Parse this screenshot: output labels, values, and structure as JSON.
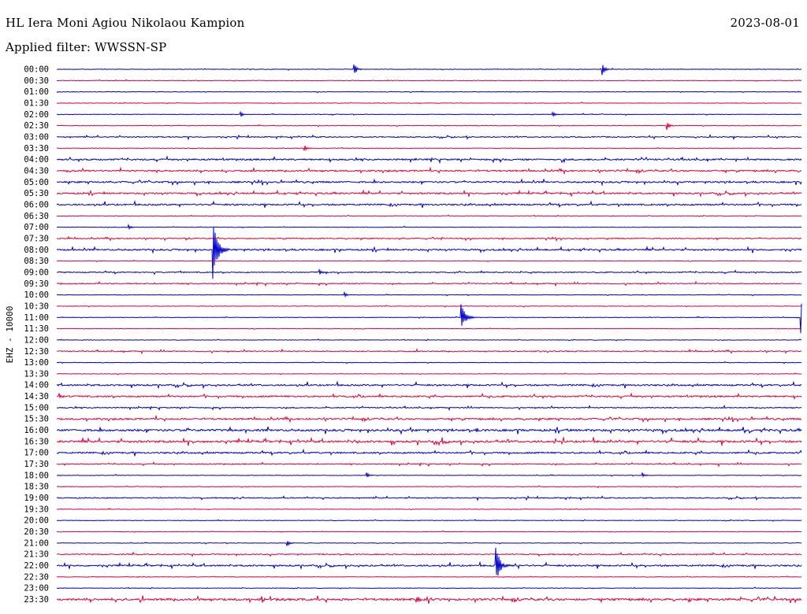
{
  "header": {
    "station": "HL Iera Moni Agiou Nikolaou Kampion",
    "date": "2023-08-01",
    "filter": "Applied filter: WWSSN-SP"
  },
  "chart_data": {
    "type": "line",
    "title": "HL Iera Moni Agiou Nikolaou Kampion",
    "ylabel": "EHZ - 10000",
    "rows": [
      "00:00",
      "00:30",
      "01:00",
      "01:30",
      "02:00",
      "02:30",
      "03:00",
      "03:30",
      "04:00",
      "04:30",
      "05:00",
      "05:30",
      "06:00",
      "06:30",
      "07:00",
      "07:30",
      "08:00",
      "08:30",
      "09:00",
      "09:30",
      "10:00",
      "10:30",
      "11:00",
      "11:30",
      "12:00",
      "12:30",
      "13:00",
      "13:30",
      "14:00",
      "14:30",
      "15:00",
      "15:30",
      "16:00",
      "16:30",
      "17:00",
      "17:30",
      "18:00",
      "18:30",
      "19:00",
      "19:30",
      "20:00",
      "20:30",
      "21:00",
      "21:30",
      "22:00",
      "22:30",
      "23:00",
      "23:30"
    ],
    "colors": [
      "#0000cc",
      "#e0003c"
    ],
    "trace_minutes": 30,
    "noise_level": [
      1,
      1,
      0,
      1,
      1,
      1,
      2,
      1,
      3,
      3,
      3,
      3,
      3,
      1,
      1,
      2,
      3,
      1,
      2,
      2,
      1,
      1,
      1,
      1,
      1,
      2,
      1,
      1,
      3,
      3,
      2,
      3,
      4,
      4,
      3,
      2,
      1,
      1,
      2,
      1,
      1,
      1,
      1,
      2,
      3,
      1,
      1,
      4
    ],
    "events": [
      {
        "row": 0,
        "minute": 12.0,
        "amp": 7
      },
      {
        "row": 0,
        "minute": 22.0,
        "amp": 6
      },
      {
        "row": 4,
        "minute": 7.4,
        "amp": 4
      },
      {
        "row": 4,
        "minute": 20.0,
        "amp": 3
      },
      {
        "row": 5,
        "minute": 24.6,
        "amp": 4
      },
      {
        "row": 7,
        "minute": 10.0,
        "amp": 3
      },
      {
        "row": 14,
        "minute": 2.9,
        "amp": 3
      },
      {
        "row": 16,
        "minute": 6.3,
        "amp": 40
      },
      {
        "row": 18,
        "minute": 10.6,
        "amp": 3
      },
      {
        "row": 20,
        "minute": 11.6,
        "amp": 3
      },
      {
        "row": 22,
        "minute": 16.3,
        "amp": 16
      },
      {
        "row": 22,
        "minute": 30.0,
        "amp": 20
      },
      {
        "row": 29,
        "minute": 0.1,
        "amp": 4
      },
      {
        "row": 32,
        "minute": 30.1,
        "amp": 8
      },
      {
        "row": 36,
        "minute": 12.5,
        "amp": 3
      },
      {
        "row": 36,
        "minute": 23.6,
        "amp": 3
      },
      {
        "row": 42,
        "minute": 9.3,
        "amp": 3
      },
      {
        "row": 44,
        "minute": 17.7,
        "amp": 22
      },
      {
        "row": 47,
        "minute": 14.5,
        "amp": 6
      },
      {
        "row": 47,
        "minute": 30.4,
        "amp": 7
      }
    ]
  }
}
